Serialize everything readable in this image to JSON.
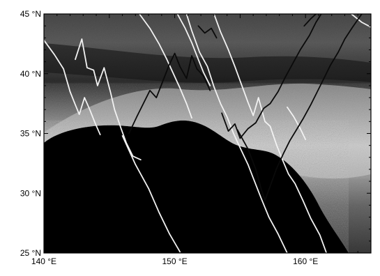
{
  "map": {
    "projection": "lat-lon",
    "lon_range_deg_e": [
      140,
      165
    ],
    "lat_range_deg_n": [
      25,
      45
    ],
    "background": "grayscale field",
    "lat_ticks": [
      {
        "value": 45,
        "label": "45 °N"
      },
      {
        "value": 40,
        "label": "40 °N"
      },
      {
        "value": 35,
        "label": "35 °N"
      },
      {
        "value": 30,
        "label": "30 °N"
      },
      {
        "value": 25,
        "label": "25 °N"
      }
    ],
    "lon_ticks": [
      {
        "value": 140,
        "label": "140 °E"
      },
      {
        "value": 150,
        "label": "150 °E"
      },
      {
        "value": 160,
        "label": "160 °E"
      }
    ],
    "tracks": [
      {
        "color": "#f2f2f2",
        "points": [
          [
            140.0,
            42.8
          ],
          [
            140.8,
            41.6
          ],
          [
            141.5,
            40.4
          ],
          [
            142.0,
            38.5
          ],
          [
            142.4,
            37.4
          ],
          [
            142.7,
            36.6
          ],
          [
            143.1,
            38.0
          ],
          [
            143.5,
            37.0
          ],
          [
            143.9,
            35.9
          ],
          [
            144.3,
            34.9
          ]
        ]
      },
      {
        "color": "#f2f2f2",
        "points": [
          [
            142.4,
            41.2
          ],
          [
            142.9,
            42.9
          ],
          [
            143.3,
            40.5
          ],
          [
            143.8,
            40.3
          ],
          [
            144.1,
            39.0
          ],
          [
            144.6,
            40.5
          ],
          [
            145.1,
            38.4
          ],
          [
            145.4,
            37.0
          ],
          [
            145.9,
            35.4
          ],
          [
            146.3,
            34.2
          ],
          [
            146.8,
            33.1
          ],
          [
            147.4,
            32.8
          ]
        ]
      },
      {
        "color": "#f2f2f2",
        "points": [
          [
            146.0,
            34.8
          ],
          [
            147.0,
            32.4
          ],
          [
            148.0,
            30.4
          ],
          [
            148.8,
            28.4
          ],
          [
            149.6,
            26.6
          ],
          [
            150.4,
            25.1
          ]
        ]
      },
      {
        "color": "#f2f2f2",
        "points": [
          [
            147.3,
            45.0
          ],
          [
            148.1,
            43.8
          ],
          [
            148.8,
            42.5
          ],
          [
            149.4,
            41.2
          ],
          [
            149.9,
            40.0
          ],
          [
            150.4,
            38.8
          ],
          [
            150.9,
            37.5
          ],
          [
            151.3,
            36.3
          ]
        ]
      },
      {
        "color": "#f2f2f2",
        "points": [
          [
            150.9,
            45.0
          ],
          [
            151.3,
            43.6
          ],
          [
            151.9,
            41.8
          ],
          [
            152.5,
            40.6
          ],
          [
            153.0,
            38.9
          ],
          [
            153.5,
            37.5
          ],
          [
            154.0,
            36.4
          ],
          [
            154.5,
            35.0
          ],
          [
            155.0,
            33.8
          ],
          [
            155.6,
            32.4
          ],
          [
            156.1,
            31.0
          ],
          [
            156.6,
            29.6
          ],
          [
            157.2,
            28.0
          ],
          [
            157.9,
            26.6
          ],
          [
            158.6,
            25.0
          ]
        ]
      },
      {
        "color": "#f2f2f2",
        "points": [
          [
            153.0,
            45.0
          ],
          [
            153.5,
            43.5
          ],
          [
            154.1,
            42.0
          ],
          [
            154.6,
            40.6
          ],
          [
            155.0,
            39.4
          ],
          [
            155.6,
            37.6
          ],
          [
            156.0,
            36.5
          ],
          [
            156.4,
            38.0
          ],
          [
            156.9,
            36.0
          ],
          [
            157.3,
            35.6
          ],
          [
            157.8,
            34.0
          ],
          [
            158.2,
            32.9
          ],
          [
            158.7,
            31.6
          ],
          [
            159.2,
            30.8
          ],
          [
            159.8,
            29.4
          ],
          [
            160.4,
            27.9
          ],
          [
            161.1,
            26.5
          ],
          [
            161.6,
            25.0
          ]
        ]
      },
      {
        "color": "#f2f2f2",
        "points": [
          [
            150.2,
            45.0
          ],
          [
            150.8,
            43.8
          ],
          [
            151.3,
            42.6
          ],
          [
            151.8,
            41.2
          ],
          [
            152.2,
            40.1
          ],
          [
            152.7,
            39.0
          ]
        ]
      },
      {
        "color": "#f2f2f2",
        "points": [
          [
            158.6,
            37.2
          ],
          [
            159.1,
            36.4
          ],
          [
            159.6,
            35.4
          ],
          [
            160.0,
            34.5
          ]
        ]
      },
      {
        "color": "#f2f2f2",
        "points": [
          [
            163.5,
            45.0
          ],
          [
            164.3,
            44.3
          ],
          [
            165.0,
            43.9
          ]
        ]
      },
      {
        "color": "#0a0a0a",
        "points": [
          [
            146.5,
            35.0
          ],
          [
            147.1,
            36.4
          ],
          [
            147.6,
            37.5
          ],
          [
            148.1,
            38.6
          ],
          [
            148.6,
            38.0
          ],
          [
            149.1,
            39.4
          ],
          [
            149.6,
            40.8
          ],
          [
            150.0,
            41.7
          ],
          [
            150.4,
            40.6
          ],
          [
            150.9,
            39.6
          ],
          [
            151.3,
            41.5
          ],
          [
            151.7,
            40.4
          ],
          [
            152.2,
            39.8
          ],
          [
            152.7,
            38.6
          ]
        ]
      },
      {
        "color": "#0a0a0a",
        "points": [
          [
            153.6,
            36.7
          ],
          [
            154.1,
            35.2
          ],
          [
            154.6,
            35.8
          ],
          [
            155.0,
            34.6
          ],
          [
            155.6,
            35.4
          ],
          [
            156.2,
            35.9
          ],
          [
            156.8,
            37.1
          ],
          [
            157.3,
            37.5
          ],
          [
            157.9,
            38.5
          ],
          [
            158.4,
            39.6
          ],
          [
            159.0,
            40.8
          ],
          [
            159.6,
            42.0
          ],
          [
            160.3,
            43.2
          ],
          [
            160.8,
            44.3
          ],
          [
            161.2,
            45.0
          ]
        ]
      },
      {
        "color": "#0a0a0a",
        "points": [
          [
            154.8,
            35.3
          ],
          [
            155.6,
            33.7
          ],
          [
            156.2,
            32.0
          ],
          [
            156.6,
            30.4
          ],
          [
            156.9,
            29.4
          ],
          [
            157.3,
            30.6
          ],
          [
            157.8,
            32.1
          ],
          [
            158.3,
            33.3
          ],
          [
            158.8,
            34.4
          ],
          [
            159.3,
            35.3
          ],
          [
            159.8,
            36.2
          ],
          [
            160.4,
            37.4
          ],
          [
            160.9,
            38.5
          ],
          [
            161.4,
            39.6
          ],
          [
            161.9,
            40.7
          ],
          [
            162.5,
            41.8
          ],
          [
            163.0,
            42.9
          ],
          [
            163.6,
            43.9
          ],
          [
            164.3,
            45.0
          ]
        ]
      },
      {
        "color": "#0a0a0a",
        "points": [
          [
            151.8,
            44.0
          ],
          [
            152.3,
            43.4
          ],
          [
            152.8,
            43.8
          ],
          [
            153.2,
            43.0
          ]
        ]
      },
      {
        "color": "#0a0a0a",
        "points": [
          [
            159.9,
            44.0
          ],
          [
            160.4,
            44.6
          ],
          [
            160.8,
            45.0
          ]
        ]
      }
    ]
  }
}
